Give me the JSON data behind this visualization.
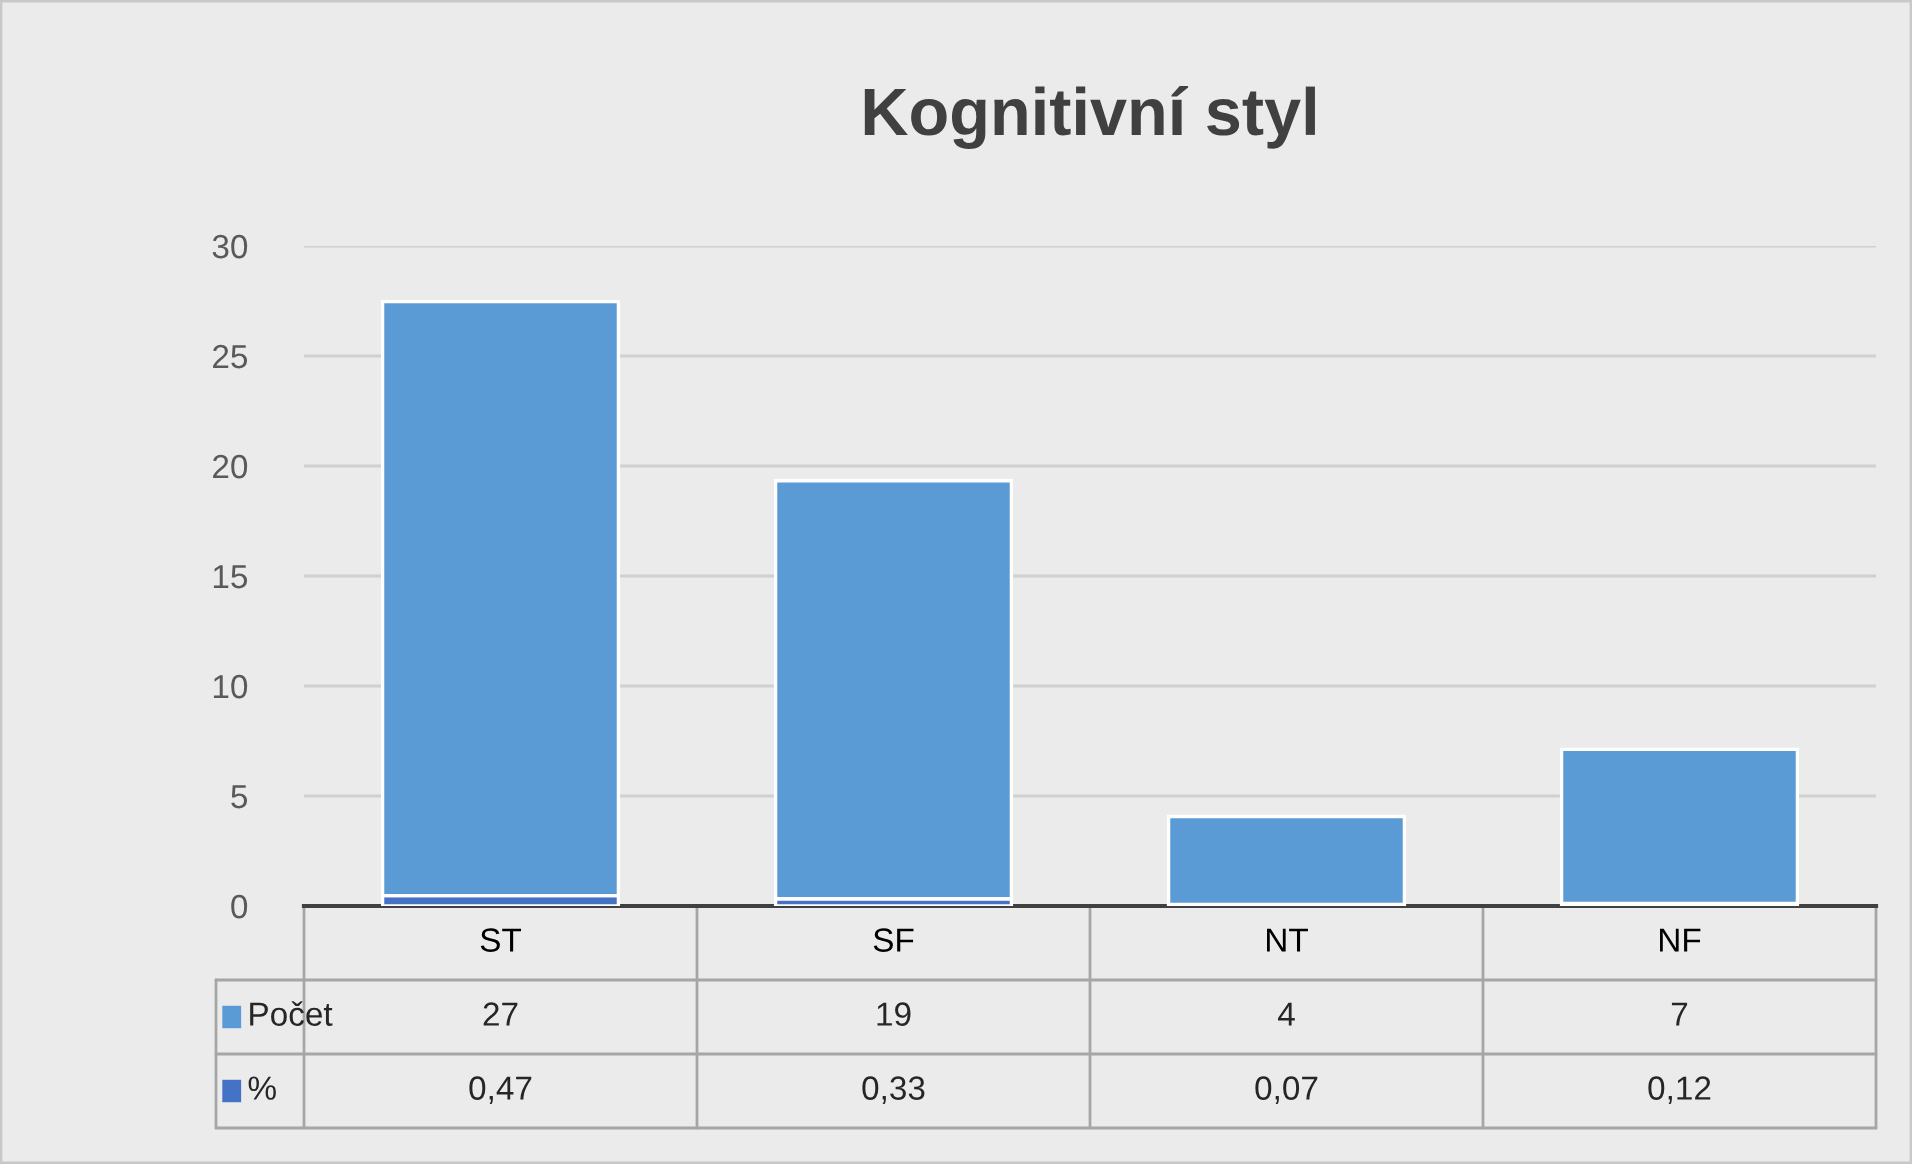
{
  "chart_data": {
    "type": "bar",
    "title": "Kognitivní styl",
    "stacked": true,
    "categories": [
      "ST",
      "SF",
      "NT",
      "NF"
    ],
    "series": [
      {
        "name": "%",
        "color": "#4472c4",
        "values": [
          0.47,
          0.33,
          0.07,
          0.12
        ],
        "value_labels": [
          "0,47",
          "0,33",
          "0,07",
          "0,12"
        ]
      },
      {
        "name": "Počet",
        "color": "#5b9bd5",
        "values": [
          27,
          19,
          4,
          7
        ],
        "value_labels": [
          "27",
          "19",
          "4",
          "7"
        ]
      }
    ],
    "ylim": [
      0,
      30
    ],
    "yticks": [
      0,
      5,
      10,
      15,
      20,
      25,
      30
    ],
    "grid": "y",
    "legend": "bottom"
  }
}
